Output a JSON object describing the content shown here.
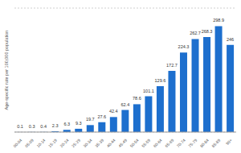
{
  "chart_data": {
    "type": "bar",
    "y_label": "Age-specific rate per 100,000 population",
    "categories": [
      "00-04",
      "05-09",
      "10-14",
      "15-19",
      "20-24",
      "25-29",
      "30-34",
      "35-39",
      "40-44",
      "45-49",
      "50-54",
      "55-59",
      "60-64",
      "65-69",
      "70-74",
      "75-79",
      "80-84",
      "85-89",
      "90+"
    ],
    "values": [
      0.1,
      0.3,
      0.4,
      2.3,
      6.3,
      9.3,
      19.7,
      27.6,
      42.4,
      62.4,
      78.6,
      101.1,
      129.6,
      172.7,
      224.3,
      262.7,
      268.3,
      298.9,
      246
    ],
    "color": "#1d6fce",
    "ylim": [
      0,
      350
    ],
    "yticks": [
      0,
      50,
      100,
      150,
      200,
      250,
      300,
      350
    ],
    "grid": true,
    "data_labels": true,
    "tick_labels": "x"
  }
}
